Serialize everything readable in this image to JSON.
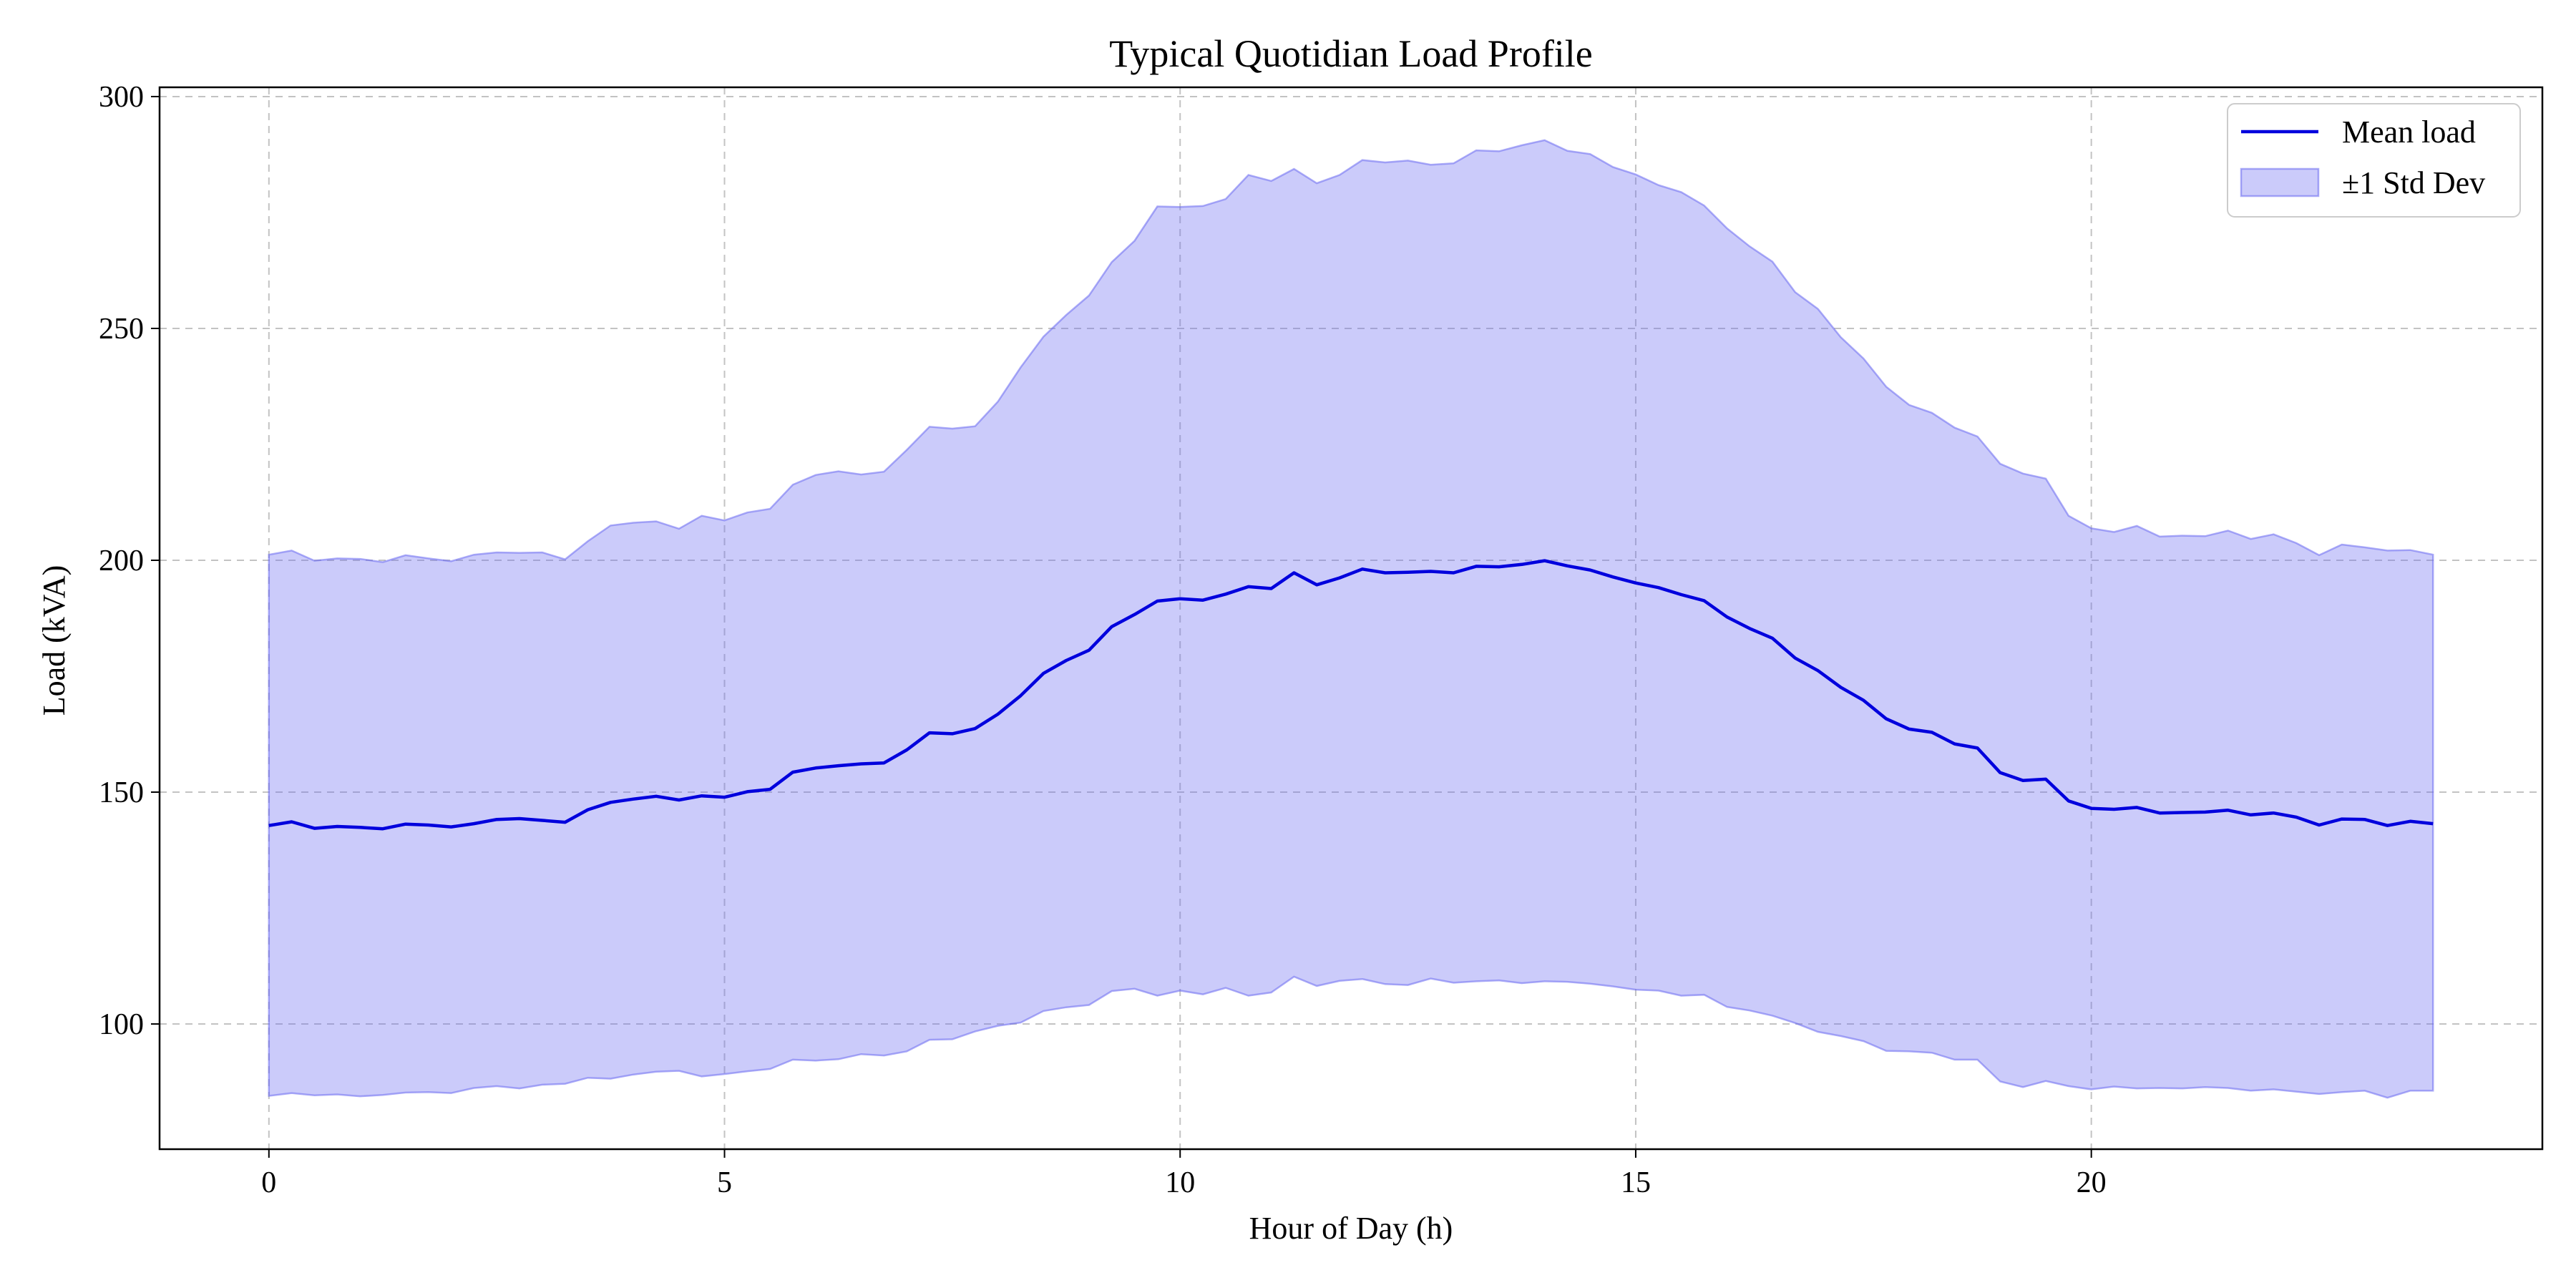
{
  "chart_data": {
    "type": "line",
    "title": "Typical Quotidian Load Profile",
    "xlabel": "Hour of Day (h)",
    "ylabel": "Load (kVA)",
    "xlim": [
      -1.2,
      24.95
    ],
    "ylim": [
      73,
      302
    ],
    "x_ticks": [
      0,
      5,
      10,
      15,
      20
    ],
    "y_ticks": [
      100,
      150,
      200,
      250,
      300
    ],
    "grid": true,
    "legend_position": "top-right",
    "x": [
      0,
      0.25,
      0.5,
      0.75,
      1,
      1.25,
      1.5,
      1.75,
      2,
      2.25,
      2.5,
      2.75,
      3,
      3.25,
      3.5,
      3.75,
      4,
      4.25,
      4.5,
      4.75,
      5,
      5.25,
      5.5,
      5.75,
      6,
      6.25,
      6.5,
      6.75,
      7,
      7.25,
      7.5,
      7.75,
      8,
      8.25,
      8.5,
      8.75,
      9,
      9.25,
      9.5,
      9.75,
      10,
      10.25,
      10.5,
      10.75,
      11,
      11.25,
      11.5,
      11.75,
      12,
      12.25,
      12.5,
      12.75,
      13,
      13.25,
      13.5,
      13.75,
      14,
      14.25,
      14.5,
      14.75,
      15,
      15.25,
      15.5,
      15.75,
      16,
      16.25,
      16.5,
      16.75,
      17,
      17.25,
      17.5,
      17.75,
      18,
      18.25,
      18.5,
      18.75,
      19,
      19.25,
      19.5,
      19.75,
      20,
      20.25,
      20.5,
      20.75,
      21,
      21.25,
      21.5,
      21.75,
      22,
      22.25,
      22.5,
      22.75,
      23,
      23.25,
      23.5,
      23.75
    ],
    "series": [
      {
        "name": "Mean load",
        "color": "#0000dd",
        "values": [
          142.8,
          143.6,
          142.2,
          142.6,
          142.4,
          142.1,
          143.1,
          142.9,
          142.5,
          143.2,
          144.1,
          144.3,
          143.9,
          143.5,
          146.2,
          147.8,
          148.5,
          149.1,
          148.3,
          149.2,
          148.9,
          150.1,
          150.6,
          154.3,
          155.2,
          155.7,
          156.1,
          156.3,
          159.1,
          162.8,
          162.6,
          163.7,
          166.8,
          170.8,
          175.6,
          178.4,
          180.6,
          185.7,
          188.3,
          191.2,
          191.7,
          191.4,
          192.7,
          194.3,
          193.9,
          197.3,
          194.7,
          196.2,
          198.1,
          197.3,
          197.4,
          197.6,
          197.3,
          198.7,
          198.6,
          199.1,
          199.9,
          198.8,
          197.9,
          196.4,
          195.1,
          194.1,
          192.6,
          191.3,
          187.8,
          185.3,
          183.2,
          178.9,
          176.2,
          172.6,
          169.8,
          165.8,
          163.6,
          162.9,
          160.4,
          159.5,
          154.2,
          152.5,
          152.8,
          148.1,
          146.5,
          146.3,
          146.7,
          145.5,
          145.6,
          145.7,
          146.1,
          145.1,
          145.5,
          144.6,
          142.9,
          144.2,
          144.1,
          142.8,
          143.7,
          143.2
        ]
      },
      {
        "name": "±1 Std Dev",
        "color": "#6a6af0",
        "upper": [
          201.2,
          202.1,
          199.9,
          200.4,
          200.3,
          199.6,
          201.1,
          200.4,
          199.8,
          201.2,
          201.7,
          201.6,
          201.7,
          200.2,
          204.1,
          207.5,
          208.1,
          208.4,
          206.8,
          209.6,
          208.6,
          210.3,
          211.1,
          216.3,
          218.4,
          219.2,
          218.5,
          219.1,
          223.8,
          228.8,
          228.4,
          228.9,
          234.2,
          241.6,
          248.2,
          252.9,
          257.1,
          264.3,
          268.9,
          276.3,
          276.2,
          276.4,
          277.9,
          283.1,
          281.8,
          284.4,
          281.3,
          283.1,
          286.3,
          285.8,
          286.2,
          285.3,
          285.6,
          288.4,
          288.2,
          289.5,
          290.6,
          288.3,
          287.6,
          284.8,
          283.2,
          280.9,
          279.4,
          276.5,
          271.6,
          267.7,
          264.4,
          257.8,
          254.2,
          248.1,
          243.5,
          237.4,
          233.5,
          231.8,
          228.6,
          226.7,
          220.8,
          218.7,
          217.6,
          209.6,
          206.9,
          206.1,
          207.4,
          205.1,
          205.3,
          205.2,
          206.4,
          204.6,
          205.6,
          203.7,
          201.1,
          203.4,
          202.8,
          202.1,
          202.2,
          201.2
        ],
        "lower": [
          84.5,
          85.1,
          84.6,
          84.8,
          84.4,
          84.7,
          85.2,
          85.3,
          85.1,
          86.2,
          86.6,
          86.1,
          86.9,
          87.1,
          88.4,
          88.2,
          89.1,
          89.7,
          89.9,
          88.7,
          89.2,
          89.8,
          90.3,
          92.3,
          92.1,
          92.4,
          93.5,
          93.2,
          94.1,
          96.6,
          96.7,
          98.4,
          99.6,
          100.3,
          102.8,
          103.6,
          104.1,
          107.1,
          107.6,
          106.1,
          107.2,
          106.4,
          107.8,
          106.1,
          106.8,
          110.2,
          108.2,
          109.3,
          109.7,
          108.6,
          108.4,
          109.8,
          108.9,
          109.2,
          109.4,
          108.8,
          109.2,
          109.1,
          108.7,
          108.1,
          107.4,
          107.2,
          106.1,
          106.3,
          103.7,
          102.9,
          101.8,
          100.2,
          98.3,
          97.4,
          96.3,
          94.2,
          94.1,
          93.8,
          92.3,
          92.3,
          87.6,
          86.4,
          87.7,
          86.6,
          85.9,
          86.5,
          86.1,
          86.2,
          86.1,
          86.4,
          86.2,
          85.6,
          85.9,
          85.4,
          84.9,
          85.3,
          85.6,
          84.1,
          85.6,
          85.6
        ]
      }
    ]
  }
}
